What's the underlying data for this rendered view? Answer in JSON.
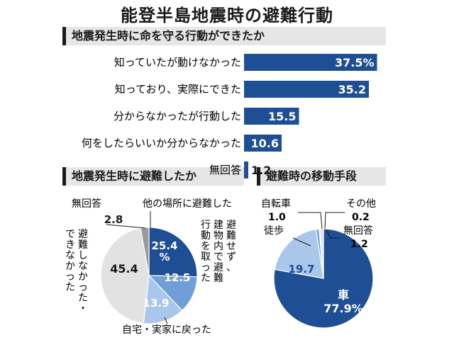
{
  "title": "能登半島地震時の避難行動",
  "chart_data": [
    {
      "type": "bar",
      "title": "地震発生時に命を守る行動ができたか",
      "categories": [
        "知っていたが動けなかった",
        "知っており、実際にできた",
        "分からなかったが行動した",
        "何をしたらいいか分からなかった",
        "無回答"
      ],
      "values": [
        37.5,
        35.2,
        15.5,
        10.6,
        1.2
      ],
      "value_labels": [
        "37.5%",
        "35.2",
        "15.5",
        "10.6",
        "1.2"
      ],
      "color": "#1e4e94",
      "xlim": [
        0,
        40
      ]
    },
    {
      "type": "pie",
      "title": "地震発生時に避難したか",
      "slices": [
        {
          "name": "他の場所に避難した",
          "value": 25.4,
          "label": "25.4%",
          "color": "#1e4e94"
        },
        {
          "name": "避難せず、建物内で避難行動を取った",
          "value": 12.5,
          "label": "12.5",
          "color": "#6f9fd6"
        },
        {
          "name": "自宅・実家に戻った",
          "value": 13.9,
          "label": "13.9",
          "color": "#a9c7ea"
        },
        {
          "name": "避難しなかった・できなかった",
          "value": 45.4,
          "label": "45.4",
          "color": "#e2e2e2"
        },
        {
          "name": "無回答",
          "value": 2.8,
          "label": "2.8",
          "color": "#9a9a9a"
        }
      ]
    },
    {
      "type": "pie",
      "title": "避難時の移動手段",
      "slices": [
        {
          "name": "車",
          "value": 77.9,
          "label": "77.9%",
          "color": "#1e4e94"
        },
        {
          "name": "徒歩",
          "value": 19.7,
          "label": "19.7",
          "color": "#a9c7ea"
        },
        {
          "name": "自転車",
          "value": 1.0,
          "label": "1.0",
          "color": "#6f9fd6"
        },
        {
          "name": "その他",
          "value": 0.2,
          "label": "0.2",
          "color": "#9a9a9a"
        },
        {
          "name": "無回答",
          "value": 1.2,
          "label": "1.2",
          "color": "#e2e2e2"
        }
      ]
    }
  ]
}
